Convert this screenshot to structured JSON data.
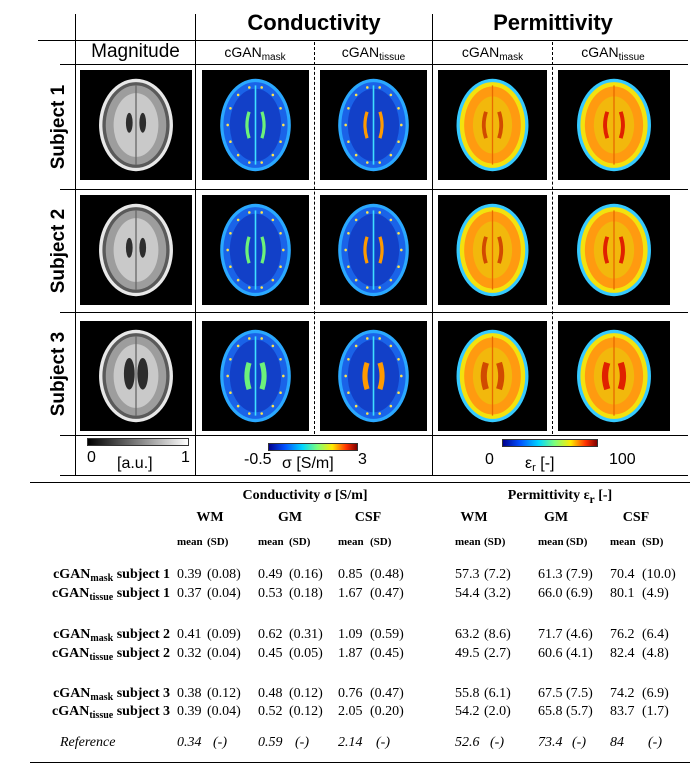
{
  "figure": {
    "groups": {
      "conductivity": "Conductivity",
      "permittivity": "Permittivity"
    },
    "columns": {
      "magnitude": "Magnitude",
      "cgan_base": "cGAN",
      "mask_sub": "mask",
      "tissue_sub": "tissue"
    },
    "subjects": [
      "Subject 1",
      "Subject 2",
      "Subject 3"
    ],
    "colorbars": {
      "magnitude": {
        "min": "0",
        "max": "1",
        "unit": "[a.u.]"
      },
      "conductivity": {
        "min": "-0.5",
        "max": "3",
        "unit": "σ [S/m]"
      },
      "permittivity": {
        "min": "0",
        "max": "100",
        "unit_base": "ε",
        "unit_sub": "r",
        "unit_rest": " [-]"
      }
    }
  },
  "table": {
    "conductivity_header": "Conductivity σ [S/m]",
    "permittivity_header_base": "Permittivity ε",
    "permittivity_header_sub": "r",
    "permittivity_header_rest": " [-]",
    "tissues": [
      "WM",
      "GM",
      "CSF",
      "WM",
      "GM",
      "CSF"
    ],
    "stat_labels": [
      "mean",
      "(SD)"
    ],
    "rows": [
      {
        "prefix": "cGAN",
        "sub": "mask",
        "suffix": " subject 1",
        "values": [
          "0.39",
          "(0.08)",
          "0.49",
          "(0.16)",
          "0.85",
          "(0.48)",
          "57.3",
          "(7.2)",
          "61.3",
          "(7.9)",
          "70.4",
          "(10.0)"
        ]
      },
      {
        "prefix": "cGAN",
        "sub": "tissue",
        "suffix": " subject 1",
        "values": [
          "0.37",
          "(0.04)",
          "0.53",
          "(0.18)",
          "1.67",
          "(0.47)",
          "54.4",
          "(3.2)",
          "66.0",
          "(6.9)",
          "80.1",
          "(4.9)"
        ]
      },
      {
        "prefix": "cGAN",
        "sub": "mask",
        "suffix": " subject 2",
        "values": [
          "0.41",
          "(0.09)",
          "0.62",
          "(0.31)",
          "1.09",
          "(0.59)",
          "63.2",
          "(8.6)",
          "71.7",
          "(4.6)",
          "76.2",
          "(6.4)"
        ]
      },
      {
        "prefix": "cGAN",
        "sub": "tissue",
        "suffix": " subject 2",
        "values": [
          "0.32",
          "(0.04)",
          "0.45",
          "(0.05)",
          "1.87",
          "(0.45)",
          "49.5",
          "(2.7)",
          "60.6",
          "(4.1)",
          "82.4",
          "(4.8)"
        ]
      },
      {
        "prefix": "cGAN",
        "sub": "mask",
        "suffix": " subject 3",
        "values": [
          "0.38",
          "(0.12)",
          "0.48",
          "(0.12)",
          "0.76",
          "(0.47)",
          "55.8",
          "(6.1)",
          "67.5",
          "(7.5)",
          "74.2",
          "(6.9)"
        ]
      },
      {
        "prefix": "cGAN",
        "sub": "tissue",
        "suffix": " subject 3",
        "values": [
          "0.39",
          "(0.04)",
          "0.52",
          "(0.12)",
          "2.05",
          "(0.20)",
          "54.2",
          "(2.0)",
          "65.8",
          "(5.7)",
          "83.7",
          "(1.7)"
        ]
      }
    ],
    "reference": {
      "label": "Reference",
      "values": [
        "0.34",
        "(-)",
        "0.59",
        "(-)",
        "2.14",
        "(-)",
        "52.6",
        "(-)",
        "73.4",
        "(-)",
        "84",
        "(-)"
      ]
    }
  }
}
